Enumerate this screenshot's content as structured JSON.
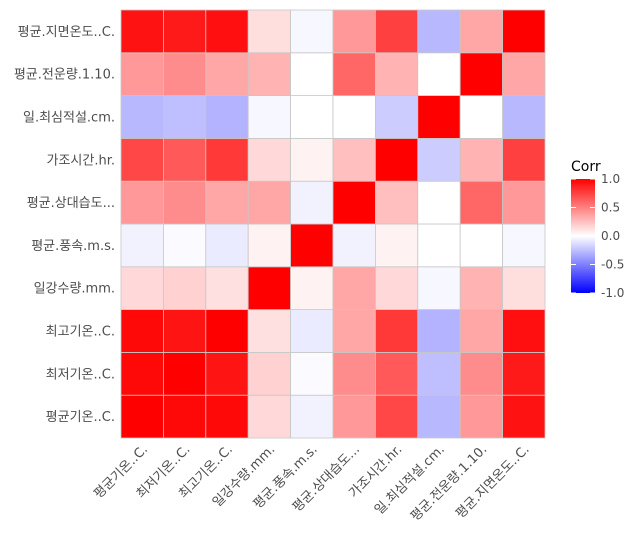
{
  "chart_data": {
    "type": "heatmap",
    "variables": [
      "평균기온..C.",
      "최저기온..C.",
      "최고기온..C.",
      "일강수량.mm.",
      "평균.풍속.m.s.",
      "평균.상대습도...",
      "가조시간.hr.",
      "일.최심적설.cm.",
      "평균.전운량.1.10.",
      "평균.지면온도..C."
    ],
    "matrix": [
      [
        1.0,
        0.97,
        0.97,
        0.15,
        -0.05,
        0.4,
        0.72,
        -0.28,
        0.4,
        0.93
      ],
      [
        0.97,
        1.0,
        0.92,
        0.18,
        -0.02,
        0.45,
        0.65,
        -0.25,
        0.45,
        0.9
      ],
      [
        0.97,
        0.92,
        1.0,
        0.12,
        -0.08,
        0.35,
        0.78,
        -0.3,
        0.35,
        0.94
      ],
      [
        0.15,
        0.18,
        0.12,
        1.0,
        0.05,
        0.35,
        0.15,
        -0.03,
        0.3,
        0.13
      ],
      [
        -0.05,
        -0.02,
        -0.08,
        0.05,
        1.0,
        -0.05,
        0.05,
        0.0,
        0.0,
        -0.03
      ],
      [
        0.4,
        0.45,
        0.35,
        0.35,
        -0.05,
        1.0,
        0.25,
        0.0,
        0.6,
        0.4
      ],
      [
        0.72,
        0.65,
        0.78,
        0.15,
        0.05,
        0.25,
        1.0,
        -0.2,
        0.3,
        0.75
      ],
      [
        -0.28,
        -0.25,
        -0.3,
        -0.03,
        0.0,
        0.0,
        -0.2,
        1.0,
        0.0,
        -0.28
      ],
      [
        0.4,
        0.45,
        0.35,
        0.3,
        0.0,
        0.6,
        0.3,
        0.0,
        1.0,
        0.35
      ],
      [
        0.93,
        0.9,
        0.94,
        0.13,
        -0.03,
        0.4,
        0.75,
        -0.28,
        0.35,
        1.0
      ]
    ],
    "legend": {
      "title": "Corr",
      "ticks": [
        "1.0",
        "0.5",
        "0.0",
        "-0.5",
        "-1.0"
      ],
      "tick_values": [
        1.0,
        0.5,
        0.0,
        -0.5,
        -1.0
      ],
      "range": [
        -1,
        1
      ],
      "placement": "right"
    },
    "colors": {
      "low": "#0000ff",
      "mid": "#ffffff",
      "high": "#ff0000",
      "grid": "#c7c7c7",
      "panel": "#ebebeb"
    },
    "grid": true
  }
}
